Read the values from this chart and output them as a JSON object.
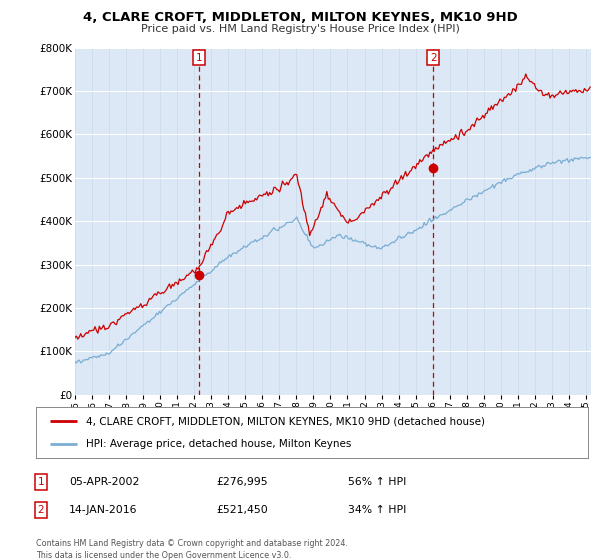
{
  "title": "4, CLARE CROFT, MIDDLETON, MILTON KEYNES, MK10 9HD",
  "subtitle": "Price paid vs. HM Land Registry's House Price Index (HPI)",
  "red_label": "4, CLARE CROFT, MIDDLETON, MILTON KEYNES, MK10 9HD (detached house)",
  "blue_label": "HPI: Average price, detached house, Milton Keynes",
  "transaction1_date": "05-APR-2002",
  "transaction1_price": "£276,995",
  "transaction1_hpi": "56% ↑ HPI",
  "transaction2_date": "14-JAN-2016",
  "transaction2_price": "£521,450",
  "transaction2_hpi": "34% ↑ HPI",
  "footer": "Contains HM Land Registry data © Crown copyright and database right 2024.\nThis data is licensed under the Open Government Licence v3.0.",
  "ylim": [
    0,
    800000
  ],
  "yticks": [
    0,
    100000,
    200000,
    300000,
    400000,
    500000,
    600000,
    700000,
    800000
  ],
  "ytick_labels": [
    "£0",
    "£100K",
    "£200K",
    "£300K",
    "£400K",
    "£500K",
    "£600K",
    "£700K",
    "£800K"
  ],
  "red_color": "#cc0000",
  "blue_color": "#7aadd4",
  "marker1_x": 2002.27,
  "marker1_y": 276995,
  "marker2_x": 2016.04,
  "marker2_y": 521450,
  "vline1_x": 2002.27,
  "vline2_x": 2016.04,
  "background_color": "#ffffff",
  "plot_bg_color": "#dce8f5",
  "xlim_start": 1995,
  "xlim_end": 2025.3
}
